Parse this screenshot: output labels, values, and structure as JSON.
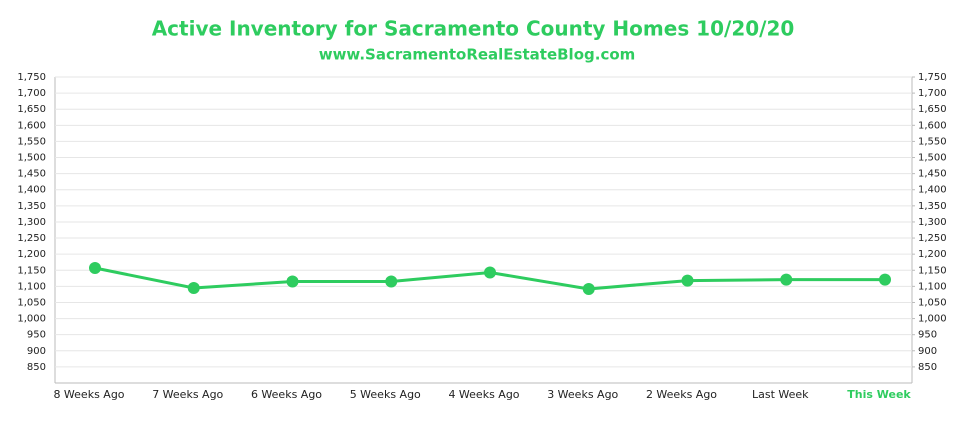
{
  "chart_data": {
    "type": "line",
    "title": "Active Inventory for Sacramento County Homes 10/20/20",
    "subtitle": "www.SacramentoRealEstateBlog.com",
    "categories": [
      "8 Weeks Ago",
      "7 Weeks Ago",
      "6 Weeks Ago",
      "5 Weeks Ago",
      "4 Weeks Ago",
      "3 Weeks Ago",
      "2 Weeks Ago",
      "Last Week",
      "This Week"
    ],
    "values": [
      1157,
      1095,
      1115,
      1115,
      1143,
      1092,
      1118,
      1121,
      1121
    ],
    "color": "#2ecc5f",
    "last_category_color": "#2ecc5f",
    "ylim": [
      800,
      1750
    ],
    "yticks": [
      850,
      900,
      950,
      {
        "value": 1000,
        "label": "1,000"
      },
      {
        "value": 1050,
        "label": "1,050"
      },
      {
        "value": 1100,
        "label": "1,100"
      },
      {
        "value": 1150,
        "label": "1,150"
      },
      {
        "value": 1200,
        "label": "1,200"
      },
      {
        "value": 1250,
        "label": "1,250"
      },
      {
        "value": 1300,
        "label": "1,300"
      },
      {
        "value": 1350,
        "label": "1,350"
      },
      {
        "value": 1400,
        "label": "1,400"
      },
      {
        "value": 1450,
        "label": "1,450"
      },
      {
        "value": 1500,
        "label": "1,500"
      },
      {
        "value": 1550,
        "label": "1,550"
      },
      {
        "value": 1600,
        "label": "1,600"
      },
      {
        "value": 1650,
        "label": "1,650"
      },
      {
        "value": 1700,
        "label": "1,700"
      },
      {
        "value": 1750,
        "label": "1,750"
      }
    ],
    "y2lim": [
      800,
      1750
    ],
    "y2ticks": [
      850,
      900,
      950,
      {
        "value": 1000,
        "label": "1,000"
      },
      {
        "value": 1050,
        "label": "1,050"
      },
      {
        "value": 1100,
        "label": "1,100"
      },
      {
        "value": 1150,
        "label": "1,150"
      },
      {
        "value": 1200,
        "label": "1,200"
      },
      {
        "value": 1250,
        "label": "1,250"
      },
      {
        "value": 1300,
        "label": "1,300"
      },
      {
        "value": 1350,
        "label": "1,350"
      },
      {
        "value": 1400,
        "label": "1,400"
      },
      {
        "value": 1450,
        "label": "1,450"
      },
      {
        "value": 1500,
        "label": "1,500"
      },
      {
        "value": 1550,
        "label": "1,550"
      },
      {
        "value": 1600,
        "label": "1,600"
      },
      {
        "value": 1650,
        "label": "1,650"
      },
      {
        "value": 1700,
        "label": "1,700"
      },
      {
        "value": 1750,
        "label": "1,750"
      }
    ],
    "grid": true
  }
}
